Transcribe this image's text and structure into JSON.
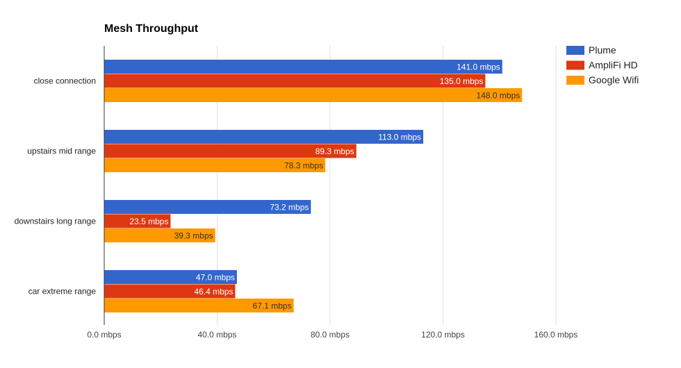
{
  "chart_data": {
    "type": "bar",
    "orientation": "horizontal",
    "title": "Mesh Throughput",
    "categories": [
      "close connection",
      "upstairs mid range",
      "downstairs long range",
      "car extreme range"
    ],
    "series": [
      {
        "name": "Plume",
        "color": "#3366cc",
        "label_color": "#ffffff",
        "values": [
          141.0,
          113.0,
          73.2,
          47.0
        ],
        "labels": [
          "141.0 mbps",
          "113.0 mbps",
          "73.2 mbps",
          "47.0 mbps"
        ]
      },
      {
        "name": "AmpliFi HD",
        "color": "#dc3912",
        "label_color": "#ffffff",
        "values": [
          135.0,
          89.3,
          23.5,
          46.4
        ],
        "labels": [
          "135.0 mbps",
          "89.3 mbps",
          "23.5 mbps",
          "46.4 mbps"
        ]
      },
      {
        "name": "Google Wifi",
        "color": "#ff9900",
        "label_color": "#333333",
        "values": [
          148.0,
          78.3,
          39.3,
          67.1
        ],
        "labels": [
          "148.0 mbps",
          "78.3 mbps",
          "39.3 mbps",
          "67.1 mbps"
        ]
      }
    ],
    "x_ticks": [
      0,
      40,
      80,
      120,
      160
    ],
    "x_tick_labels": [
      "0.0 mbps",
      "40.0 mbps",
      "80.0 mbps",
      "120.0 mbps",
      "160.0 mbps"
    ],
    "xlim": [
      0,
      160
    ],
    "grid": true,
    "legend_position": "right"
  }
}
